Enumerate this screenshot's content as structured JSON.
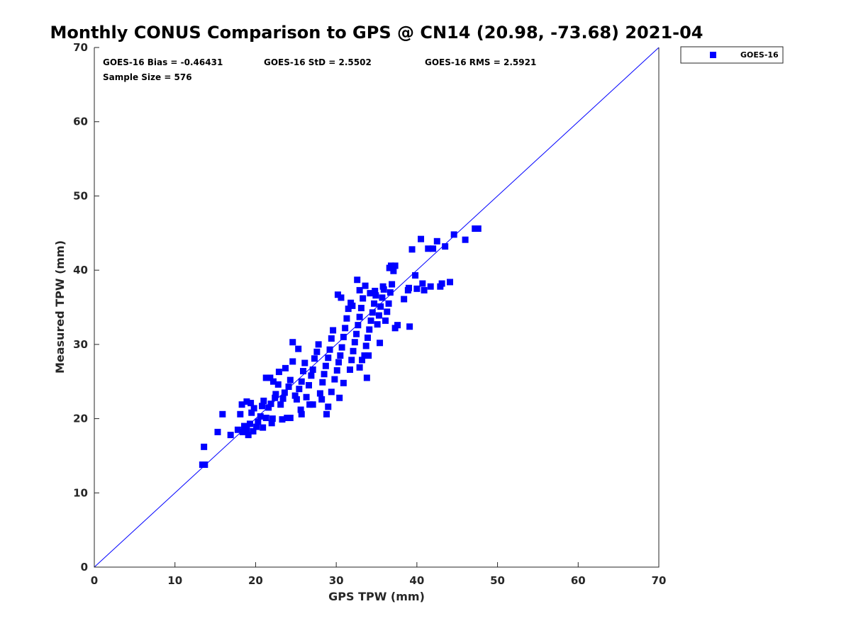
{
  "chart_data": {
    "type": "scatter",
    "title": "Monthly CONUS Comparison to GPS @ CN14 (20.98, -73.68) 2021-04",
    "xlabel": "GPS TPW (mm)",
    "ylabel": "Measured TPW (mm)",
    "xlim": [
      0,
      70
    ],
    "ylim": [
      0,
      70
    ],
    "xticks": [
      "0",
      "10",
      "20",
      "30",
      "40",
      "50",
      "60",
      "70"
    ],
    "yticks": [
      "0",
      "10",
      "20",
      "30",
      "40",
      "50",
      "60",
      "70"
    ],
    "grid": false,
    "legend_position": "outside-top-right",
    "reference_line": {
      "from": [
        0,
        0
      ],
      "to": [
        70,
        70
      ],
      "color": "#0000ff"
    },
    "stats": {
      "bias": "GOES-16 Bias = -0.46431",
      "std": "GOES-16 StD = 2.5502",
      "rms": "GOES-16 RMS = 2.5921",
      "sample": "Sample Size = 576"
    },
    "series": [
      {
        "name": "GOES-16",
        "color": "#0000ff",
        "marker": "square",
        "points": [
          [
            13.4,
            13.8
          ],
          [
            13.7,
            13.8
          ],
          [
            13.6,
            16.2
          ],
          [
            15.3,
            18.2
          ],
          [
            15.9,
            20.6
          ],
          [
            16.9,
            17.8
          ],
          [
            17.8,
            18.5
          ],
          [
            18.1,
            20.6
          ],
          [
            18.4,
            18.2
          ],
          [
            18.6,
            19.0
          ],
          [
            18.3,
            21.9
          ],
          [
            18.9,
            22.3
          ],
          [
            19.1,
            17.8
          ],
          [
            19.3,
            19.3
          ],
          [
            19.5,
            20.8
          ],
          [
            19.8,
            21.4
          ],
          [
            20.1,
            18.9
          ],
          [
            20.3,
            19.6
          ],
          [
            20.6,
            20.3
          ],
          [
            20.8,
            21.7
          ],
          [
            21.0,
            22.4
          ],
          [
            19.4,
            22.1
          ],
          [
            21.3,
            20.1
          ],
          [
            21.6,
            21.5
          ],
          [
            21.9,
            22.0
          ],
          [
            22.1,
            20.0
          ],
          [
            22.4,
            22.8
          ],
          [
            21.3,
            25.5
          ],
          [
            21.8,
            25.5
          ],
          [
            22.2,
            25.0
          ],
          [
            22.5,
            23.3
          ],
          [
            22.8,
            24.6
          ],
          [
            22.9,
            26.3
          ],
          [
            23.1,
            21.9
          ],
          [
            23.4,
            22.7
          ],
          [
            23.6,
            23.5
          ],
          [
            23.9,
            20.1
          ],
          [
            24.1,
            24.3
          ],
          [
            24.3,
            25.2
          ],
          [
            24.6,
            27.7
          ],
          [
            23.7,
            26.8
          ],
          [
            24.9,
            23.1
          ],
          [
            25.1,
            22.6
          ],
          [
            25.4,
            24.0
          ],
          [
            25.7,
            25.0
          ],
          [
            25.9,
            26.4
          ],
          [
            26.1,
            27.5
          ],
          [
            24.6,
            30.3
          ],
          [
            25.3,
            29.4
          ],
          [
            25.6,
            21.2
          ],
          [
            26.3,
            22.9
          ],
          [
            26.6,
            24.5
          ],
          [
            26.9,
            25.8
          ],
          [
            27.1,
            26.6
          ],
          [
            27.3,
            28.1
          ],
          [
            27.6,
            29.0
          ],
          [
            27.8,
            30.0
          ],
          [
            27.1,
            21.9
          ],
          [
            28.0,
            23.4
          ],
          [
            28.3,
            24.9
          ],
          [
            28.5,
            26.0
          ],
          [
            28.7,
            27.1
          ],
          [
            29.0,
            28.2
          ],
          [
            29.2,
            29.3
          ],
          [
            29.4,
            30.8
          ],
          [
            29.6,
            31.9
          ],
          [
            28.8,
            20.6
          ],
          [
            29.0,
            21.6
          ],
          [
            29.8,
            25.3
          ],
          [
            30.1,
            26.5
          ],
          [
            30.3,
            27.6
          ],
          [
            30.5,
            28.5
          ],
          [
            30.7,
            29.6
          ],
          [
            30.9,
            31.0
          ],
          [
            31.1,
            32.2
          ],
          [
            31.3,
            33.5
          ],
          [
            31.5,
            34.8
          ],
          [
            30.4,
            22.8
          ],
          [
            31.7,
            26.6
          ],
          [
            31.9,
            27.9
          ],
          [
            32.1,
            29.1
          ],
          [
            32.3,
            30.3
          ],
          [
            32.5,
            31.4
          ],
          [
            32.7,
            32.6
          ],
          [
            32.9,
            33.7
          ],
          [
            33.1,
            34.9
          ],
          [
            33.3,
            36.2
          ],
          [
            32.6,
            38.7
          ],
          [
            33.5,
            28.5
          ],
          [
            33.7,
            29.8
          ],
          [
            33.9,
            30.9
          ],
          [
            34.1,
            32.0
          ],
          [
            34.3,
            33.2
          ],
          [
            34.5,
            34.3
          ],
          [
            34.7,
            35.5
          ],
          [
            34.9,
            36.6
          ],
          [
            35.1,
            32.7
          ],
          [
            35.3,
            33.9
          ],
          [
            35.5,
            35.1
          ],
          [
            35.7,
            36.3
          ],
          [
            35.9,
            37.4
          ],
          [
            36.1,
            33.2
          ],
          [
            36.3,
            34.4
          ],
          [
            36.5,
            35.5
          ],
          [
            36.7,
            37.0
          ],
          [
            36.9,
            38.1
          ],
          [
            37.1,
            39.9
          ],
          [
            37.3,
            40.6
          ],
          [
            36.6,
            40.3
          ],
          [
            37.3,
            32.2
          ],
          [
            37.6,
            32.6
          ],
          [
            38.4,
            36.1
          ],
          [
            39.0,
            37.6
          ],
          [
            39.1,
            32.4
          ],
          [
            38.9,
            37.3
          ],
          [
            39.4,
            42.8
          ],
          [
            39.8,
            39.3
          ],
          [
            40.0,
            37.5
          ],
          [
            40.5,
            44.2
          ],
          [
            40.7,
            38.2
          ],
          [
            40.9,
            37.3
          ],
          [
            41.4,
            42.9
          ],
          [
            41.7,
            37.8
          ],
          [
            42.0,
            42.9
          ],
          [
            42.5,
            43.9
          ],
          [
            42.9,
            37.8
          ],
          [
            43.1,
            38.2
          ],
          [
            43.5,
            43.2
          ],
          [
            44.1,
            38.4
          ],
          [
            44.6,
            44.8
          ],
          [
            46.0,
            44.1
          ],
          [
            47.2,
            45.6
          ],
          [
            47.6,
            45.6
          ],
          [
            30.2,
            36.7
          ],
          [
            30.6,
            36.3
          ],
          [
            31.8,
            35.6
          ],
          [
            32.0,
            35.2
          ],
          [
            32.9,
            37.3
          ],
          [
            33.6,
            37.9
          ],
          [
            34.2,
            36.9
          ],
          [
            34.8,
            37.2
          ],
          [
            35.8,
            37.8
          ],
          [
            36.8,
            40.6
          ],
          [
            35.4,
            30.2
          ],
          [
            33.8,
            25.5
          ],
          [
            32.9,
            26.9
          ],
          [
            33.2,
            27.9
          ],
          [
            34.0,
            28.5
          ],
          [
            30.9,
            24.8
          ],
          [
            29.4,
            23.6
          ],
          [
            28.2,
            22.6
          ],
          [
            26.7,
            21.9
          ],
          [
            25.7,
            20.6
          ],
          [
            24.3,
            20.1
          ],
          [
            23.3,
            19.9
          ],
          [
            22.0,
            19.4
          ],
          [
            20.9,
            18.8
          ],
          [
            19.7,
            18.3
          ],
          [
            18.9,
            18.6
          ]
        ]
      }
    ]
  }
}
